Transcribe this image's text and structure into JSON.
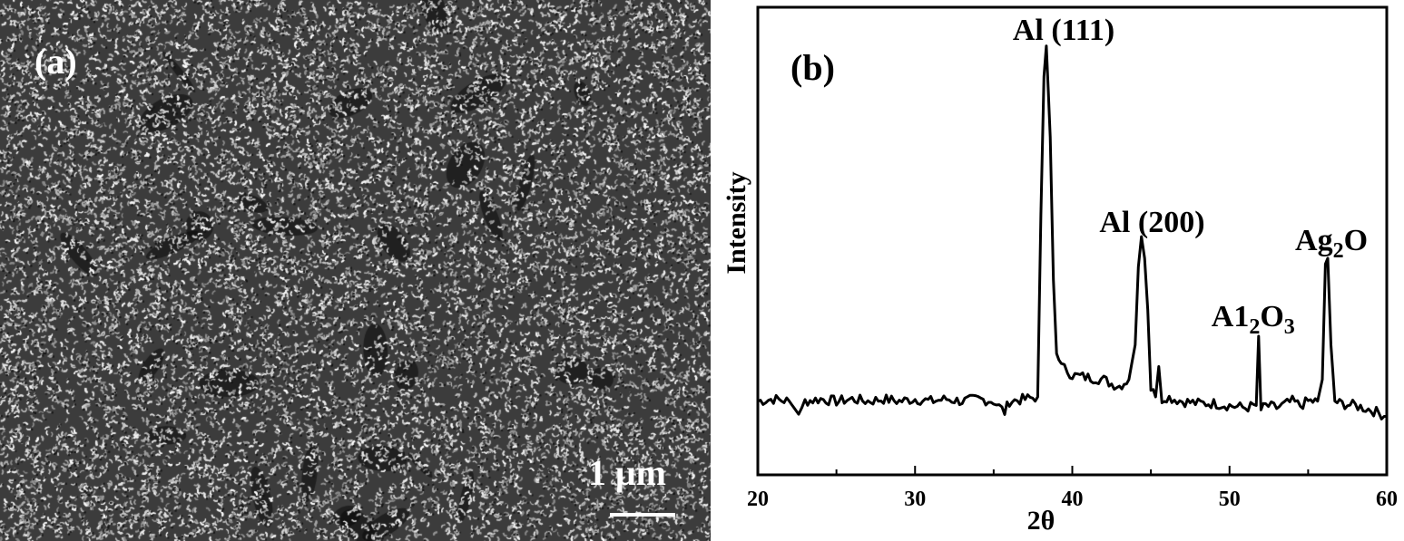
{
  "panel_a": {
    "label": "(a)",
    "scale_bar": "1 μm"
  },
  "chart_data": {
    "type": "line",
    "panel_label": "(b)",
    "xlabel": "2θ",
    "ylabel": "Intensity",
    "xlim": [
      20,
      60
    ],
    "ylim": [
      0,
      100
    ],
    "x_ticks": [
      20,
      30,
      40,
      50,
      60
    ],
    "y_ticks": [],
    "grid": false,
    "line_color": "#000000",
    "series": [
      {
        "x": [
          20,
          21,
          22,
          22.6,
          23,
          24,
          25,
          26,
          27,
          28,
          29,
          30,
          31,
          32,
          33,
          34,
          35,
          35.7,
          36,
          37,
          37.8,
          38.0,
          38.2,
          38.35,
          38.6,
          38.8,
          39.0,
          39.3,
          39.7,
          40,
          41,
          42,
          42.5,
          43,
          43.6,
          44.0,
          44.2,
          44.4,
          44.6,
          44.8,
          45.0,
          45.3,
          45.5,
          45.7,
          46,
          47,
          48,
          49,
          50,
          51,
          51.7,
          51.85,
          52.0,
          52.3,
          53,
          54,
          54.5,
          55,
          55.6,
          55.9,
          56.1,
          56.25,
          56.45,
          56.7,
          57,
          58,
          59,
          60
        ],
        "y": [
          17,
          17.5,
          17,
          14,
          17,
          17.5,
          17,
          17.5,
          17,
          17.5,
          17,
          17.5,
          17,
          17.5,
          17,
          17.5,
          17,
          14.5,
          17,
          17.5,
          18,
          60,
          92,
          99,
          78,
          45,
          28,
          25,
          24,
          23,
          22.5,
          22,
          21,
          20.5,
          22,
          30,
          48,
          55,
          50,
          38,
          20,
          18,
          25,
          17.5,
          18,
          17,
          16.5,
          16.5,
          16,
          15.5,
          16,
          32,
          15,
          16,
          15.5,
          17,
          16,
          17,
          17,
          22,
          48,
          50,
          30,
          17,
          16.5,
          16,
          15,
          13.5
        ]
      }
    ],
    "annotations": [
      {
        "text": "Al (111)",
        "x": 38.3
      },
      {
        "text": "Al (200)",
        "x": 44.5
      },
      {
        "text": "A1",
        "sub1": "2",
        "mid": "O",
        "sub2": "3",
        "x": 51.85
      },
      {
        "text": "Ag",
        "sub": "2",
        "tail": "O",
        "x": 56.25
      }
    ]
  }
}
